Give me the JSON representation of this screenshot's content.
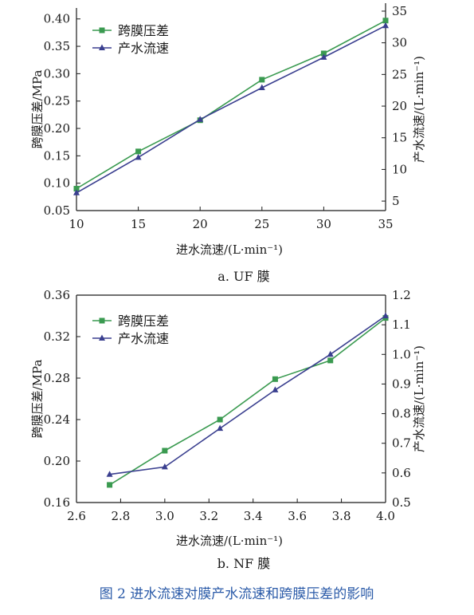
{
  "chart_data": [
    {
      "type": "line",
      "caption": "a. UF 膜",
      "xlabel": "进水流速/(L·min⁻¹)",
      "ylabel": "跨膜压差/MPa",
      "y2label": "产水流速/(L·min⁻¹)",
      "x": [
        10,
        15,
        20,
        25,
        30,
        35
      ],
      "xticks": [
        "10",
        "15",
        "20",
        "25",
        "30",
        "35"
      ],
      "yticks": [
        "0.05",
        "0.10",
        "0.15",
        "0.20",
        "0.25",
        "0.30",
        "0.35",
        "0.40"
      ],
      "y2ticks": [
        "5",
        "10",
        "15",
        "20",
        "25",
        "30",
        "35"
      ],
      "xlim": [
        10,
        35
      ],
      "ylim": [
        0.05,
        0.42
      ],
      "y2lim": [
        3.5,
        35.5
      ],
      "legend": "top-left",
      "series": [
        {
          "name": "跨膜压差",
          "axis": "left",
          "marker": "square",
          "color": "#3a9a50",
          "values": [
            0.09,
            0.158,
            0.215,
            0.289,
            0.337,
            0.397
          ]
        },
        {
          "name": "产水流速",
          "axis": "right",
          "marker": "triangle",
          "color": "#3a3f8f",
          "values": [
            6.3,
            11.9,
            17.9,
            22.9,
            27.7,
            32.7
          ]
        }
      ]
    },
    {
      "type": "line",
      "caption": "b. NF 膜",
      "xlabel": "进水流速/(L·min⁻¹)",
      "ylabel": "跨膜压差/MPa",
      "y2label": "产水流速/(L·min⁻¹)",
      "x": [
        2.75,
        3.0,
        3.25,
        3.5,
        3.75,
        4.0
      ],
      "xticks": [
        "2.6",
        "2.8",
        "3.0",
        "3.2",
        "3.4",
        "3.6",
        "3.8",
        "4.0"
      ],
      "yticks": [
        "0.16",
        "0.20",
        "0.24",
        "0.28",
        "0.32",
        "0.36"
      ],
      "y2ticks": [
        "0.5",
        "0.6",
        "0.7",
        "0.8",
        "0.9",
        "1.0",
        "1.1",
        "1.2"
      ],
      "xlim": [
        2.6,
        4.0
      ],
      "ylim": [
        0.16,
        0.36
      ],
      "y2lim": [
        0.5,
        1.2
      ],
      "legend": "top-left",
      "series": [
        {
          "name": "跨膜压差",
          "axis": "left",
          "marker": "square",
          "color": "#3a9a50",
          "values": [
            0.177,
            0.21,
            0.24,
            0.279,
            0.297,
            0.338
          ]
        },
        {
          "name": "产水流速",
          "axis": "right",
          "marker": "triangle",
          "color": "#3a3f8f",
          "values": [
            0.595,
            0.62,
            0.75,
            0.88,
            1.0,
            1.13
          ]
        }
      ]
    }
  ],
  "figure_caption": "图 2 进水流速对膜产水流速和跨膜压差的影响",
  "colors": {
    "caption": "#2a5aa8",
    "axis": "#1a1a1a"
  }
}
